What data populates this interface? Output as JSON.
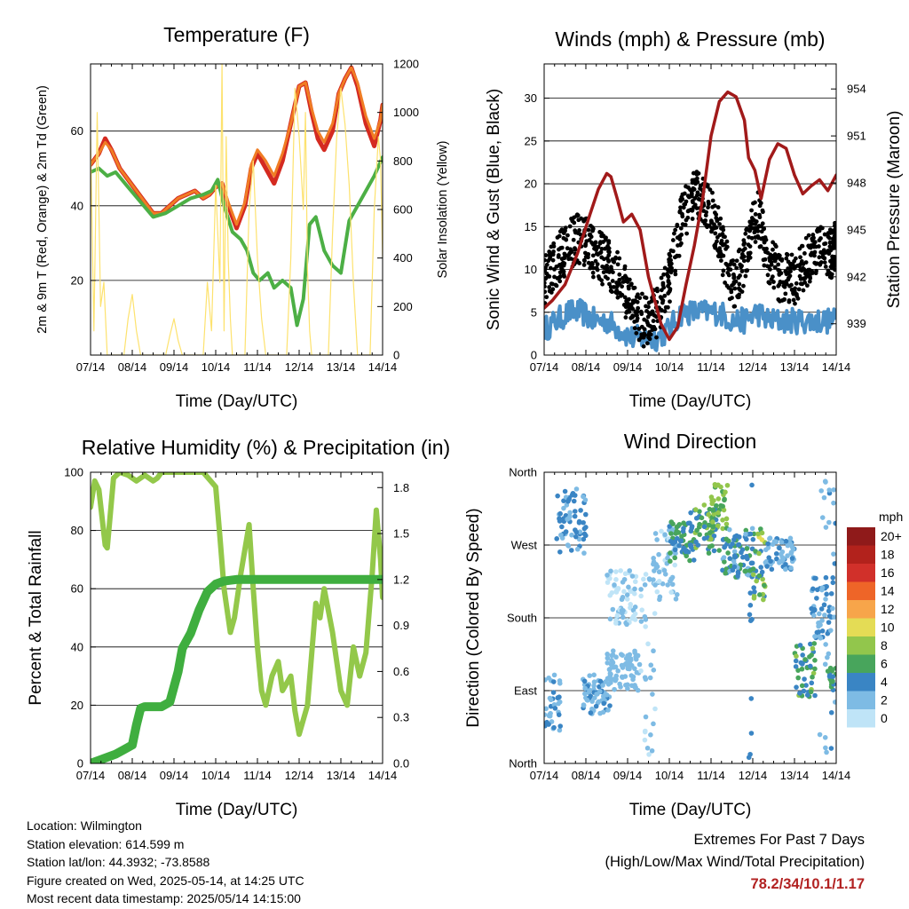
{
  "colors": {
    "t2m": "#d42a20",
    "t9m": "#f07d24",
    "td": "#4caf45",
    "solar": "#fde26e",
    "wind": "#4a90c8",
    "gust": "#000000",
    "pressure": "#a11a1a",
    "rh": "#93c84a",
    "precip": "#3fae3f",
    "extremes": "#b22222"
  },
  "x_ticks": [
    "07/14",
    "08/14",
    "09/14",
    "10/14",
    "11/14",
    "12/14",
    "13/14",
    "14/14"
  ],
  "xlabel": "Time (Day/UTC)",
  "info": {
    "location": "Location: Wilmington",
    "elevation": "Station elevation: 614.599 m",
    "latlon": "Station lat/lon: 44.3932; -73.8588",
    "created": "Figure created on Wed, 2025-05-14, at 14:25 UTC",
    "recent": "Most recent data timestamp: 2025/05/14 14:15:00"
  },
  "extremes": {
    "title": "Extremes For Past 7 Days",
    "subtitle": "(High/Low/Max Wind/Total Precipitation)",
    "values": "78.2/34/10.1/1.17"
  },
  "chart_data": [
    {
      "type": "line",
      "title": "Temperature (F)",
      "xlabel": "Time (Day/UTC)",
      "ylabel": "2m & 9m T (Red, Orange) & 2m Td (Green)",
      "y2label": "Solar Insolation (Yellow)",
      "xlim": [
        0,
        7
      ],
      "ylim": [
        0,
        78
      ],
      "y2lim": [
        0,
        1200
      ],
      "yticks": [
        20,
        40,
        60
      ],
      "y2ticks": [
        0,
        200,
        400,
        600,
        800,
        1000,
        1200
      ],
      "grid": true,
      "series": [
        {
          "key": "t2m",
          "axis": "left",
          "x": [
            0,
            0.2,
            0.35,
            0.5,
            0.7,
            0.9,
            1.1,
            1.3,
            1.5,
            1.7,
            1.9,
            2.1,
            2.3,
            2.5,
            2.7,
            2.85,
            3.0,
            3.15,
            3.3,
            3.5,
            3.7,
            3.85,
            4.0,
            4.2,
            4.4,
            4.6,
            4.8,
            5.0,
            5.15,
            5.3,
            5.45,
            5.6,
            5.8,
            5.95,
            6.1,
            6.25,
            6.4,
            6.6,
            6.8,
            6.95,
            7.0
          ],
          "values": [
            51,
            54,
            58,
            55,
            50,
            47,
            44,
            41,
            38,
            38,
            40,
            42,
            43,
            44,
            42,
            43,
            45,
            46,
            40,
            34,
            40,
            50,
            54,
            50,
            46,
            52,
            62,
            72,
            73,
            65,
            58,
            55,
            60,
            70,
            74,
            77,
            72,
            62,
            56,
            63,
            67
          ]
        },
        {
          "key": "t9m",
          "axis": "left",
          "x": [
            0,
            0.2,
            0.35,
            0.5,
            0.7,
            0.9,
            1.1,
            1.3,
            1.5,
            1.7,
            1.9,
            2.1,
            2.3,
            2.5,
            2.7,
            2.85,
            3.0,
            3.15,
            3.3,
            3.5,
            3.7,
            3.85,
            4.0,
            4.2,
            4.4,
            4.6,
            4.8,
            5.0,
            5.15,
            5.3,
            5.45,
            5.6,
            5.8,
            5.95,
            6.1,
            6.25,
            6.4,
            6.6,
            6.8,
            6.95,
            7.0
          ],
          "values": [
            51,
            54,
            57,
            55,
            50,
            47,
            44,
            41,
            38,
            38,
            40,
            42,
            43,
            44,
            42,
            43,
            45,
            46,
            41,
            35,
            41,
            51,
            55,
            52,
            48,
            54,
            62,
            72,
            73,
            66,
            60,
            57,
            62,
            70,
            74,
            77,
            73,
            64,
            58,
            63,
            67
          ]
        },
        {
          "key": "td",
          "axis": "left",
          "x": [
            0,
            0.2,
            0.4,
            0.6,
            0.9,
            1.2,
            1.5,
            1.8,
            2.1,
            2.4,
            2.7,
            2.9,
            3.05,
            3.2,
            3.4,
            3.6,
            3.75,
            3.9,
            4.05,
            4.25,
            4.4,
            4.6,
            4.8,
            4.95,
            5.1,
            5.25,
            5.4,
            5.6,
            5.8,
            6.0,
            6.2,
            6.4,
            6.6,
            6.8,
            7.0
          ],
          "values": [
            49,
            50,
            48,
            49,
            45,
            41,
            37,
            38,
            40,
            42,
            43,
            44,
            47,
            40,
            33,
            31,
            28,
            22,
            20,
            22,
            18,
            20,
            18,
            8,
            15,
            35,
            37,
            28,
            24,
            22,
            36,
            40,
            44,
            48,
            53
          ]
        },
        {
          "key": "solar",
          "axis": "right",
          "x": [
            0,
            0.08,
            0.16,
            0.24,
            0.32,
            0.4,
            0.55,
            0.8,
            0.9,
            1.0,
            1.1,
            1.2,
            1.8,
            1.9,
            2.0,
            2.1,
            2.2,
            2.7,
            2.8,
            2.9,
            3.0,
            3.1,
            3.15,
            3.2,
            3.25,
            3.3,
            3.35,
            3.4,
            3.7,
            3.8,
            3.9,
            4.0,
            4.1,
            4.2,
            4.3,
            4.7,
            4.8,
            4.9,
            5.0,
            5.1,
            5.15,
            5.2,
            5.25,
            5.3,
            5.7,
            5.8,
            5.9,
            6.0,
            6.1,
            6.2,
            6.3,
            6.4,
            6.7,
            6.8,
            6.9,
            6.95,
            7.0
          ],
          "values": [
            900,
            100,
            1000,
            200,
            300,
            0,
            0,
            0,
            150,
            250,
            100,
            0,
            0,
            80,
            150,
            60,
            0,
            0,
            300,
            100,
            700,
            300,
            1200,
            100,
            900,
            400,
            150,
            0,
            0,
            600,
            800,
            400,
            150,
            0,
            0,
            0,
            400,
            1100,
            900,
            600,
            1000,
            350,
            100,
            0,
            0,
            500,
            900,
            1100,
            950,
            700,
            300,
            0,
            0,
            600,
            900,
            800,
            400
          ]
        }
      ]
    },
    {
      "type": "line",
      "title": "Winds (mph) & Pressure (mb)",
      "xlabel": "Time (Day/UTC)",
      "ylabel": "Sonic Wind & Gust (Blue, Black)",
      "y2label": "Station Pressure (Maroon)",
      "xlim": [
        0,
        7
      ],
      "ylim": [
        0,
        34
      ],
      "y2lim": [
        937,
        955.6
      ],
      "yticks": [
        0,
        5,
        10,
        15,
        20,
        25,
        30
      ],
      "y2ticks": [
        939,
        942,
        945,
        948,
        951,
        954
      ],
      "grid": true,
      "series": [
        {
          "key": "wind",
          "axis": "left",
          "x": [
            0,
            0.3,
            0.6,
            0.9,
            1.2,
            1.5,
            1.8,
            2.1,
            2.4,
            2.7,
            3.0,
            3.3,
            3.6,
            3.9,
            4.2,
            4.5,
            4.8,
            5.1,
            5.4,
            5.7,
            6.0,
            6.3,
            6.6,
            6.9,
            7.0
          ],
          "values": [
            3,
            4,
            5,
            5,
            4,
            4,
            3,
            2,
            2,
            2,
            3,
            5,
            5,
            5,
            5,
            4,
            4,
            5,
            4,
            4,
            4,
            4,
            4,
            4,
            4
          ]
        },
        {
          "key": "gust",
          "axis": "left",
          "x": [
            0,
            0.3,
            0.6,
            0.9,
            1.2,
            1.5,
            1.8,
            2.1,
            2.4,
            2.7,
            3.0,
            3.3,
            3.6,
            3.9,
            4.2,
            4.5,
            4.8,
            5.1,
            5.4,
            5.7,
            6.0,
            6.3,
            6.6,
            6.9,
            7.0
          ],
          "values": [
            8,
            10,
            12,
            13,
            11,
            10,
            8,
            5,
            3,
            4,
            8,
            15,
            18,
            17,
            13,
            7,
            10,
            16,
            10,
            8,
            8,
            10,
            12,
            11,
            12
          ]
        },
        {
          "key": "pressure",
          "axis": "right",
          "x": [
            0,
            0.2,
            0.5,
            0.8,
            1.1,
            1.3,
            1.5,
            1.6,
            1.75,
            1.9,
            2.1,
            2.3,
            2.5,
            2.8,
            3.0,
            3.2,
            3.4,
            3.6,
            3.8,
            4.0,
            4.2,
            4.4,
            4.6,
            4.8,
            4.9,
            5.05,
            5.2,
            5.4,
            5.6,
            5.8,
            6.0,
            6.2,
            6.4,
            6.6,
            6.8,
            7.0
          ],
          "values": [
            940.0,
            940.5,
            941.5,
            943.5,
            946.0,
            947.6,
            948.6,
            948.4,
            947.0,
            945.5,
            946.0,
            945.0,
            942.0,
            939.0,
            938.0,
            938.8,
            941.5,
            944.0,
            947.0,
            951.0,
            953.2,
            953.8,
            953.5,
            952.0,
            949.6,
            948.8,
            947.0,
            949.5,
            950.5,
            950.2,
            948.5,
            947.3,
            947.8,
            948.2,
            947.5,
            948.5
          ]
        }
      ]
    },
    {
      "type": "line",
      "title": "Relative Humidity (%) & Precipitation (in)",
      "xlabel": "Time (Day/UTC)",
      "ylabel": "Percent & Total Rainfall",
      "xlim": [
        0,
        7
      ],
      "ylim": [
        0,
        100
      ],
      "y2lim": [
        0,
        1.9
      ],
      "yticks": [
        0,
        20,
        40,
        60,
        80,
        100
      ],
      "y2ticks": [
        0.0,
        0.3,
        0.6,
        0.9,
        1.2,
        1.5,
        1.8
      ],
      "grid": true,
      "series": [
        {
          "key": "rh",
          "axis": "left",
          "x": [
            0,
            0.1,
            0.2,
            0.35,
            0.4,
            0.45,
            0.55,
            0.7,
            0.9,
            1.1,
            1.3,
            1.5,
            1.6,
            1.7,
            1.8,
            2.0,
            2.3,
            2.7,
            3.0,
            3.1,
            3.2,
            3.3,
            3.35,
            3.45,
            3.6,
            3.8,
            3.9,
            4.0,
            4.1,
            4.2,
            4.35,
            4.5,
            4.6,
            4.8,
            4.9,
            5.0,
            5.1,
            5.2,
            5.4,
            5.5,
            5.6,
            5.8,
            6.0,
            6.15,
            6.3,
            6.45,
            6.6,
            6.75,
            6.85,
            6.95,
            7.0
          ],
          "values": [
            88,
            97,
            94,
            75,
            74,
            82,
            98,
            100,
            99,
            97,
            99,
            97,
            98,
            100,
            100,
            100,
            100,
            100,
            95,
            78,
            60,
            50,
            45,
            50,
            65,
            82,
            60,
            40,
            25,
            20,
            30,
            35,
            25,
            30,
            18,
            10,
            15,
            20,
            55,
            50,
            60,
            45,
            25,
            20,
            40,
            30,
            38,
            65,
            87,
            70,
            57
          ]
        },
        {
          "key": "precip",
          "axis": "right",
          "x": [
            0,
            0.2,
            0.4,
            0.6,
            0.8,
            1.0,
            1.1,
            1.2,
            1.3,
            1.5,
            1.7,
            1.9,
            2.0,
            2.1,
            2.2,
            2.4,
            2.6,
            2.8,
            3.0,
            3.2,
            3.5,
            4.0,
            5.0,
            6.0,
            7.0
          ],
          "values": [
            0.0,
            0.02,
            0.04,
            0.06,
            0.09,
            0.12,
            0.25,
            0.36,
            0.37,
            0.37,
            0.37,
            0.4,
            0.5,
            0.6,
            0.75,
            0.85,
            1.0,
            1.12,
            1.17,
            1.19,
            1.2,
            1.2,
            1.2,
            1.2,
            1.2
          ]
        }
      ]
    },
    {
      "type": "scatter",
      "title": "Wind Direction",
      "xlabel": "Time (Day/UTC)",
      "ylabel": "Direction (Colored By Speed)",
      "xlim": [
        0,
        7
      ],
      "ylim": [
        0,
        360
      ],
      "yticks": [
        0,
        90,
        180,
        270,
        360
      ],
      "ytick_labels": [
        "North",
        "East",
        "South",
        "West",
        "North"
      ],
      "grid": true,
      "legend": {
        "title": "mph",
        "labels": [
          "20+",
          "18",
          "16",
          "14",
          "12",
          "10",
          "8",
          "6",
          "4",
          "2",
          "0"
        ],
        "colors": [
          "#8f1a1a",
          "#b2221c",
          "#d1302a",
          "#ee6528",
          "#f7a54a",
          "#e4dc55",
          "#92c64c",
          "#48a55c",
          "#3a85c4",
          "#7ebbe4",
          "#bfe4f7"
        ],
        "placement": "right"
      },
      "clusters": [
        {
          "x": [
            0.0,
            0.4
          ],
          "y": [
            40,
            110
          ],
          "speed": [
            1,
            4
          ]
        },
        {
          "x": [
            0.3,
            1.0
          ],
          "y": [
            260,
            340
          ],
          "speed": [
            2,
            5
          ]
        },
        {
          "x": [
            0.9,
            1.6
          ],
          "y": [
            60,
            110
          ],
          "speed": [
            1,
            4
          ]
        },
        {
          "x": [
            1.5,
            2.3
          ],
          "y": [
            90,
            140
          ],
          "speed": [
            1,
            3
          ]
        },
        {
          "x": [
            1.5,
            2.2
          ],
          "y": [
            170,
            240
          ],
          "speed": [
            0,
            2
          ]
        },
        {
          "x": [
            2.3,
            2.7
          ],
          "y": [
            0,
            260
          ],
          "speed": [
            0,
            2
          ]
        },
        {
          "x": [
            2.6,
            3.2
          ],
          "y": [
            200,
            300
          ],
          "speed": [
            0,
            3
          ]
        },
        {
          "x": [
            3.0,
            3.6
          ],
          "y": [
            250,
            300
          ],
          "speed": [
            3,
            7
          ]
        },
        {
          "x": [
            3.5,
            4.2
          ],
          "y": [
            260,
            320
          ],
          "speed": [
            3,
            8
          ]
        },
        {
          "x": [
            4.0,
            4.4
          ],
          "y": [
            290,
            345
          ],
          "speed": [
            5,
            9
          ]
        },
        {
          "x": [
            4.2,
            5.2
          ],
          "y": [
            230,
            290
          ],
          "speed": [
            2,
            6
          ]
        },
        {
          "x": [
            5.0,
            5.3
          ],
          "y": [
            200,
            290
          ],
          "speed": [
            4,
            10
          ]
        },
        {
          "x": [
            4.9,
            5.0
          ],
          "y": [
            0,
            360
          ],
          "speed": [
            2,
            5
          ]
        },
        {
          "x": [
            5.3,
            6.0
          ],
          "y": [
            240,
            280
          ],
          "speed": [
            1,
            4
          ]
        },
        {
          "x": [
            6.0,
            6.5
          ],
          "y": [
            80,
            150
          ],
          "speed": [
            3,
            8
          ]
        },
        {
          "x": [
            6.4,
            6.9
          ],
          "y": [
            150,
            230
          ],
          "speed": [
            2,
            5
          ]
        },
        {
          "x": [
            6.6,
            7.0
          ],
          "y": [
            0,
            360
          ],
          "speed": [
            1,
            4
          ]
        },
        {
          "x": [
            6.8,
            7.0
          ],
          "y": [
            90,
            120
          ],
          "speed": [
            4,
            7
          ]
        }
      ]
    }
  ]
}
